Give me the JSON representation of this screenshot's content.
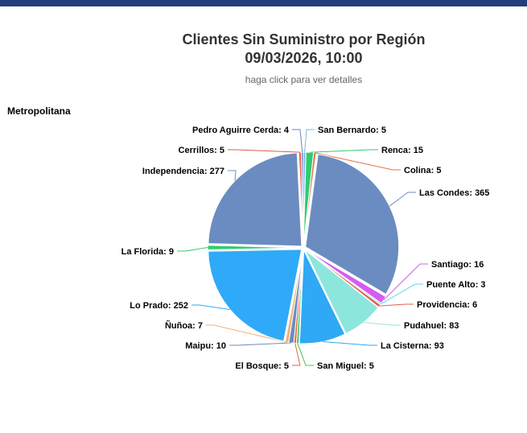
{
  "title_line1": "Clientes Sin Suministro por Región",
  "title_line2": "09/03/2026, 10:00",
  "subtitle": "haga click para ver detalles",
  "region": "Metropolitana",
  "chart_data": {
    "type": "pie",
    "title": "Clientes Sin Suministro por Región",
    "subtitle": "haga click para ver detalles",
    "slices": [
      {
        "name": "San Bernardo",
        "value": 5,
        "color": "#7ab8e0",
        "label": "San Bernardo: 5"
      },
      {
        "name": "Renca",
        "value": 15,
        "color": "#2ecc71",
        "label": "Renca: 15"
      },
      {
        "name": "Colina",
        "value": 5,
        "color": "#e8704a",
        "label": "Colina: 5"
      },
      {
        "name": "Las Condes",
        "value": 365,
        "color": "#6b8cc0",
        "label": "Las Condes: 365"
      },
      {
        "name": "Santiago",
        "value": 16,
        "color": "#d65cf0",
        "label": "Santiago: 16"
      },
      {
        "name": "Puente Alto",
        "value": 3,
        "color": "#5dd8e8",
        "label": "Puente Alto: 3"
      },
      {
        "name": "Providencia",
        "value": 6,
        "color": "#e35d4d",
        "label": "Providencia: 6"
      },
      {
        "name": "Pudahuel",
        "value": 83,
        "color": "#8de6dc",
        "label": "Pudahuel: 83"
      },
      {
        "name": "La Cisterna",
        "value": 93,
        "color": "#2fa8f5",
        "label": "La Cisterna: 93"
      },
      {
        "name": "San Miguel",
        "value": 5,
        "color": "#3cc46a",
        "label": "San Miguel: 5"
      },
      {
        "name": "El Bosque",
        "value": 5,
        "color": "#e06a3a",
        "label": "El Bosque: 5"
      },
      {
        "name": "Maipu",
        "value": 10,
        "color": "#6b8cc0",
        "label": "Maipu: 10"
      },
      {
        "name": "Ñuñoa",
        "value": 7,
        "color": "#f0b07a",
        "label": "Ñuñoa: 7"
      },
      {
        "name": "Lo Prado",
        "value": 252,
        "color": "#2faaf8",
        "label": "Lo Prado: 252"
      },
      {
        "name": "La Florida",
        "value": 9,
        "color": "#2ecc71",
        "label": "La Florida: 9"
      },
      {
        "name": "Independencia",
        "value": 277,
        "color": "#6b8cc0",
        "label": "Independencia: 277"
      },
      {
        "name": "Cerrillos",
        "value": 5,
        "color": "#e35d4d",
        "label": "Cerrillos: 5"
      },
      {
        "name": "Pedro Aguirre Cerda",
        "value": 4,
        "color": "#6a7fd0",
        "label": "Pedro Aguirre Cerda: 4"
      }
    ]
  }
}
